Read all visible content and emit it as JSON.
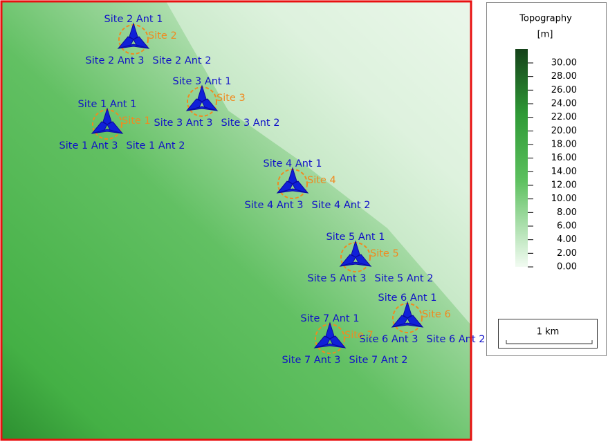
{
  "map": {
    "sites": [
      {
        "name": "Site 1",
        "antennas": [
          "Site 1 Ant 1",
          "Site 1 Ant 2",
          "Site 1 Ant 3"
        ]
      },
      {
        "name": "Site 2",
        "antennas": [
          "Site 2 Ant 1",
          "Site 2 Ant 2",
          "Site 2 Ant 3"
        ]
      },
      {
        "name": "Site 3",
        "antennas": [
          "Site 3 Ant 1",
          "Site 3 Ant 2",
          "Site 3 Ant 3"
        ]
      },
      {
        "name": "Site 4",
        "antennas": [
          "Site 4 Ant 1",
          "Site 4 Ant 2",
          "Site 4 Ant 3"
        ]
      },
      {
        "name": "Site 5",
        "antennas": [
          "Site 5 Ant 1",
          "Site 5 Ant 2",
          "Site 5 Ant 3"
        ]
      },
      {
        "name": "Site 6",
        "antennas": [
          "Site 6 Ant 1",
          "Site 6 Ant 2",
          "Site 6 Ant 3"
        ]
      },
      {
        "name": "Site 7",
        "antennas": [
          "Site 7 Ant 1",
          "Site 7 Ant 2",
          "Site 7 Ant 3"
        ]
      }
    ]
  },
  "legend": {
    "title": "Topography",
    "unit": "[m]",
    "ticks": [
      "0.00",
      "2.00",
      "4.00",
      "6.00",
      "8.00",
      "10.00",
      "12.00",
      "14.00",
      "16.00",
      "18.00",
      "20.00",
      "22.00",
      "24.00",
      "26.00",
      "28.00",
      "30.00"
    ],
    "scale": "1 km"
  }
}
